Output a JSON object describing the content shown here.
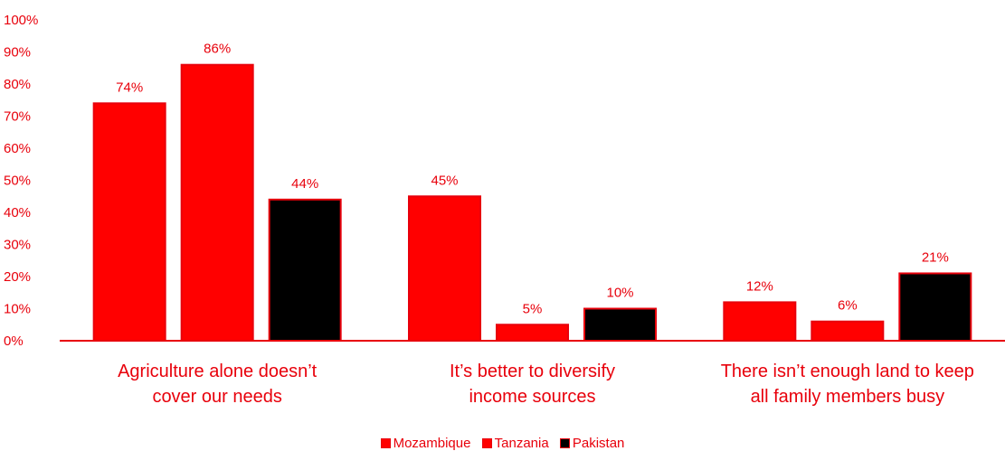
{
  "chart_data": {
    "type": "bar",
    "title": "",
    "xlabel": "",
    "ylabel": "",
    "ylim": [
      0,
      100
    ],
    "y_ticks": [
      "0%",
      "10%",
      "20%",
      "30%",
      "40%",
      "50%",
      "60%",
      "70%",
      "80%",
      "90%",
      "100%"
    ],
    "grid": false,
    "legend_position": "bottom",
    "categories": [
      [
        "Agriculture alone doesn’t",
        "cover our needs"
      ],
      [
        "It’s better to diversify",
        "income sources"
      ],
      [
        "There isn’t enough land to keep",
        "all family members busy"
      ]
    ],
    "series": [
      {
        "name": "Mozambique",
        "color": "#ff0000",
        "values": [
          74,
          45,
          12
        ],
        "labels": [
          "74%",
          "45%",
          "12%"
        ]
      },
      {
        "name": "Tanzania",
        "color": "#ff0000",
        "values": [
          86,
          5,
          6
        ],
        "labels": [
          "86%",
          "5%",
          "6%"
        ]
      },
      {
        "name": "Pakistan",
        "color": "#000000",
        "values": [
          44,
          10,
          21
        ],
        "labels": [
          "44%",
          "10%",
          "21%"
        ]
      }
    ],
    "bar_edge_color": "#e8000b",
    "text_color": "#e8000b"
  }
}
